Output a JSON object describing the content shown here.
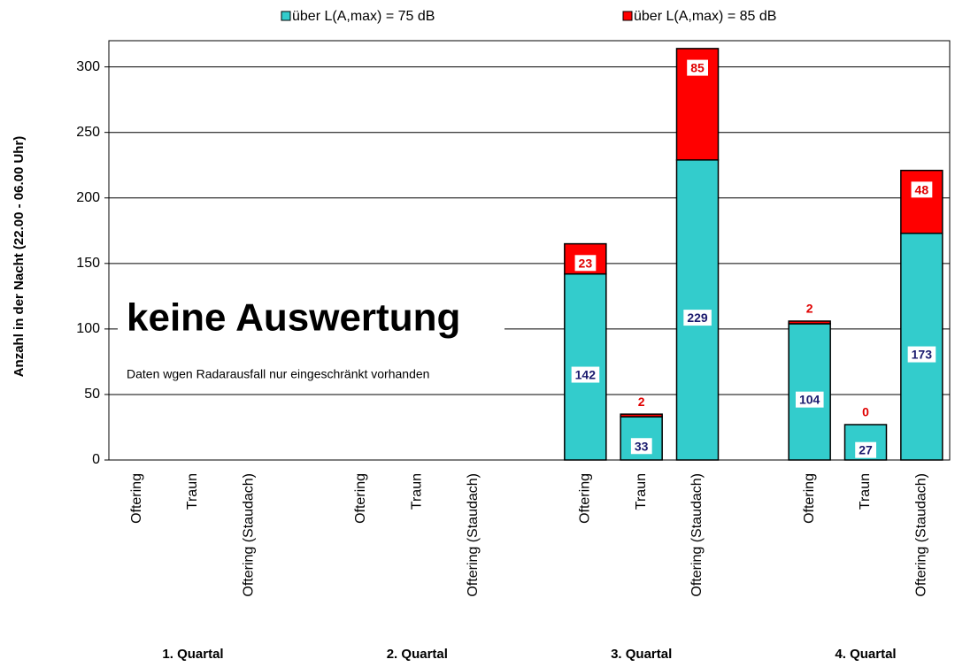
{
  "chart_data": {
    "type": "stacked_bar",
    "ylabel": "Anzahl in der Nacht (22.00 - 06.00 Uhr)",
    "categories": [
      "Oftering",
      "Traun",
      "Oftering (Staudach)",
      "Oftering",
      "Traun",
      "Oftering (Staudach)",
      "Oftering",
      "Traun",
      "Oftering (Staudach)",
      "Oftering",
      "Traun",
      "Oftering (Staudach)"
    ],
    "groups": [
      "1. Quartal",
      "2. Quartal",
      "3. Quartal",
      "4. Quartal"
    ],
    "series": [
      {
        "name": "über L(A,max) = 75 dB",
        "color": "#33cccc",
        "values": [
          0,
          0,
          0,
          0,
          0,
          0,
          142,
          33,
          229,
          104,
          27,
          173
        ],
        "value_labels": [
          null,
          null,
          null,
          null,
          null,
          null,
          "142",
          "33",
          "229",
          "104",
          "27",
          "173"
        ]
      },
      {
        "name": "über L(A,max) = 85 dB",
        "color": "#ff0000",
        "values": [
          0,
          0,
          0,
          0,
          0,
          0,
          23,
          2,
          85,
          2,
          0,
          48
        ],
        "value_labels": [
          null,
          null,
          null,
          null,
          null,
          null,
          "23",
          "2",
          "85",
          "2",
          "0",
          "48"
        ]
      }
    ],
    "ylim": [
      0,
      320
    ],
    "yticks": [
      0,
      50,
      100,
      150,
      200,
      250,
      300
    ],
    "grid": true,
    "annotation": {
      "title": "keine Auswertung",
      "text": "Daten wgen Radarausfall nur eingeschränkt vorhanden"
    }
  }
}
